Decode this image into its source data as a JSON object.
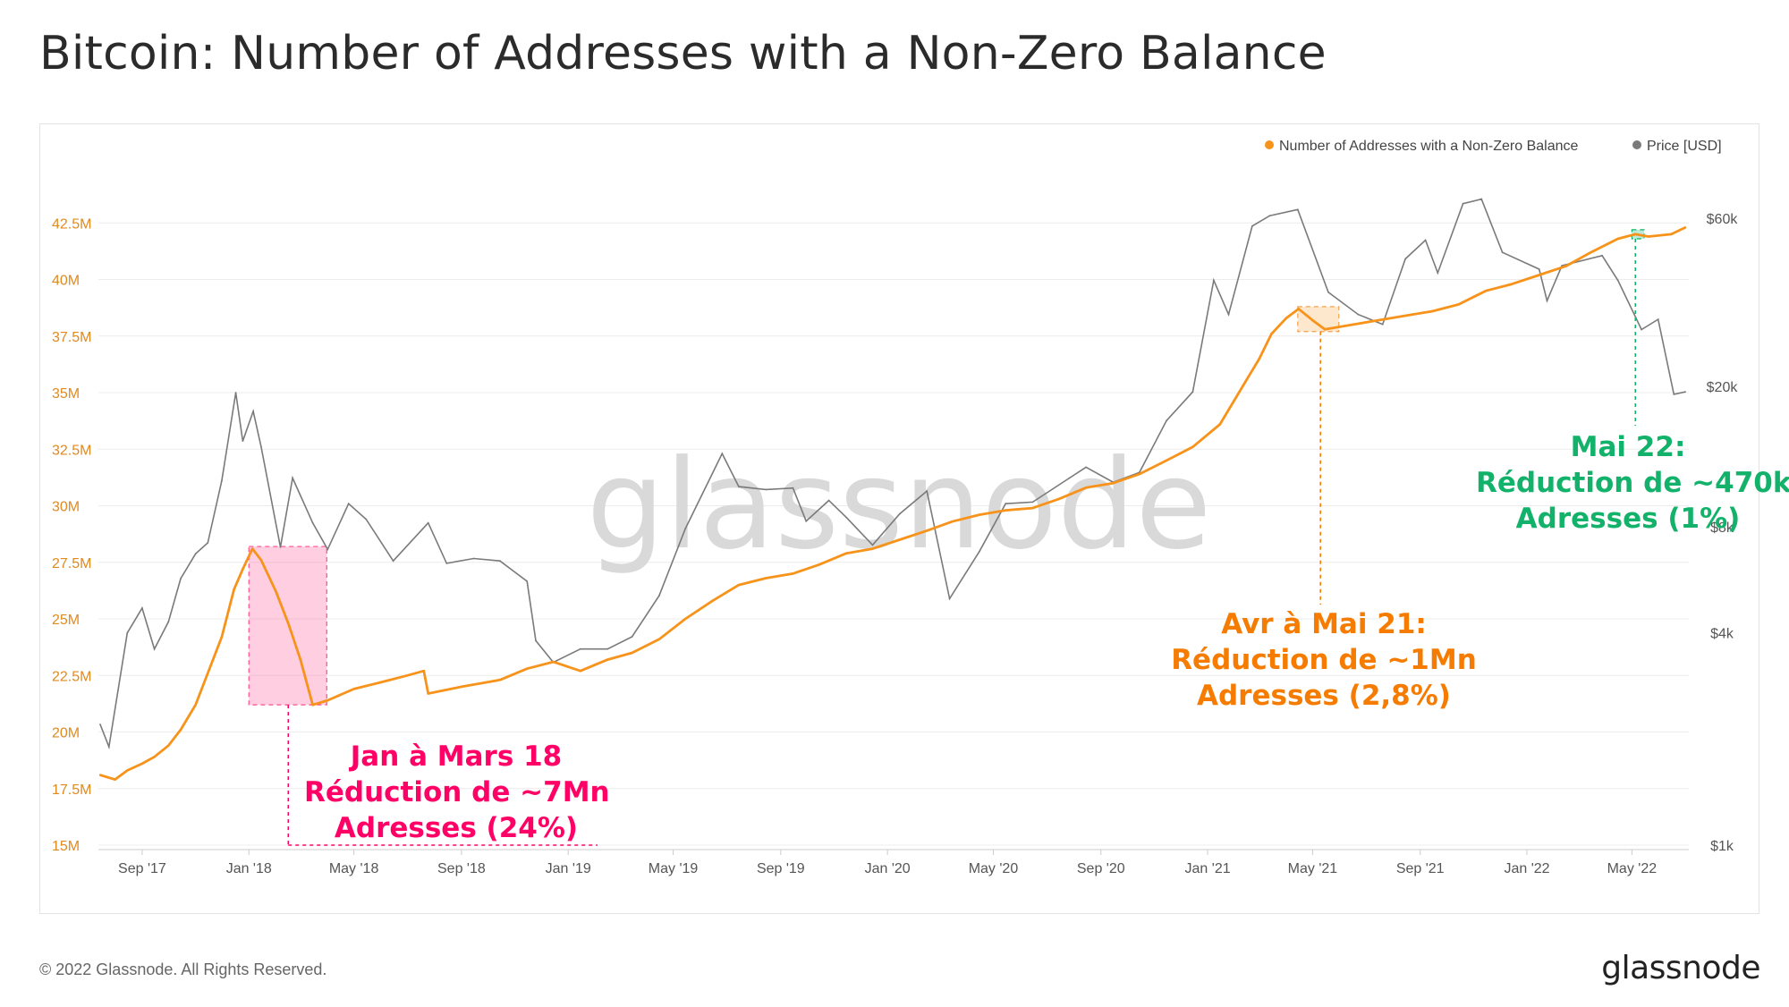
{
  "title": "Bitcoin: Number of Addresses with a Non-Zero Balance",
  "footer": {
    "copyright": "© 2022 Glassnode. All Rights Reserved.",
    "logo": "glassnode"
  },
  "watermark": "glassnode",
  "colors": {
    "addresses": "#f7931a",
    "price": "#7a7a7a",
    "pink": "#ff0066",
    "orange": "#f57c00",
    "green": "#13b26b"
  },
  "annotations": [
    {
      "id": "jan-mar-18",
      "lines": [
        "Jan à Mars 18",
        "Réduction de ~7Mn",
        "Adresses (24%)"
      ]
    },
    {
      "id": "apr-may-21",
      "lines": [
        "Avr à Mai 21:",
        "Réduction de ~1Mn",
        "Adresses (2,8%)"
      ]
    },
    {
      "id": "may-22",
      "lines": [
        "Mai 22:",
        "Réduction de ~470k",
        "Adresses (1%)"
      ]
    }
  ],
  "chart_data": {
    "type": "line",
    "title": "Bitcoin: Number of Addresses with a Non-Zero Balance",
    "legend_position": "top-right",
    "legend": [
      "Number of Addresses with a Non-Zero Balance",
      "Price [USD]"
    ],
    "x_ticks": [
      "Sep '17",
      "Jan '18",
      "May '18",
      "Sep '18",
      "Jan '19",
      "May '19",
      "Sep '19",
      "Jan '20",
      "May '20",
      "Sep '20",
      "Jan '21",
      "May '21",
      "Sep '21",
      "Jan '22",
      "May '22"
    ],
    "y_left_ticks": [
      "15M",
      "17.5M",
      "20M",
      "22.5M",
      "25M",
      "27.5M",
      "30M",
      "32.5M",
      "35M",
      "37.5M",
      "40M",
      "42.5M"
    ],
    "y_left_range": [
      15,
      43.5
    ],
    "y_right_ticks": [
      "$1k",
      "$4k",
      "$8k",
      "$20k",
      "$60k"
    ],
    "y_right_values": [
      1000,
      4000,
      8000,
      20000,
      60000
    ],
    "series": [
      {
        "name": "Number of Addresses with a Non-Zero Balance",
        "unit": "millions",
        "points": [
          [
            "2017-07-15",
            18.1
          ],
          [
            "2017-08-01",
            17.9
          ],
          [
            "2017-08-15",
            18.3
          ],
          [
            "2017-09-01",
            18.6
          ],
          [
            "2017-09-15",
            18.9
          ],
          [
            "2017-10-01",
            19.4
          ],
          [
            "2017-10-15",
            20.1
          ],
          [
            "2017-11-01",
            21.2
          ],
          [
            "2017-11-15",
            22.6
          ],
          [
            "2017-12-01",
            24.2
          ],
          [
            "2017-12-15",
            26.3
          ],
          [
            "2017-12-25",
            27.2
          ],
          [
            "2018-01-05",
            28.1
          ],
          [
            "2018-01-15",
            27.6
          ],
          [
            "2018-02-01",
            26.2
          ],
          [
            "2018-02-15",
            24.8
          ],
          [
            "2018-03-01",
            23.2
          ],
          [
            "2018-03-15",
            21.2
          ],
          [
            "2018-04-01",
            21.4
          ],
          [
            "2018-05-01",
            21.9
          ],
          [
            "2018-06-01",
            22.2
          ],
          [
            "2018-07-01",
            22.5
          ],
          [
            "2018-07-20",
            22.7
          ],
          [
            "2018-07-25",
            21.7
          ],
          [
            "2018-09-01",
            22.0
          ],
          [
            "2018-10-15",
            22.3
          ],
          [
            "2018-11-15",
            22.8
          ],
          [
            "2018-12-15",
            23.1
          ],
          [
            "2019-01-15",
            22.7
          ],
          [
            "2019-02-15",
            23.2
          ],
          [
            "2019-03-15",
            23.5
          ],
          [
            "2019-04-15",
            24.1
          ],
          [
            "2019-05-15",
            25.0
          ],
          [
            "2019-06-15",
            25.8
          ],
          [
            "2019-07-15",
            26.5
          ],
          [
            "2019-08-15",
            26.8
          ],
          [
            "2019-09-15",
            27.0
          ],
          [
            "2019-10-15",
            27.4
          ],
          [
            "2019-11-15",
            27.9
          ],
          [
            "2019-12-15",
            28.1
          ],
          [
            "2020-01-15",
            28.5
          ],
          [
            "2020-02-15",
            28.9
          ],
          [
            "2020-03-15",
            29.3
          ],
          [
            "2020-04-15",
            29.6
          ],
          [
            "2020-05-15",
            29.8
          ],
          [
            "2020-06-15",
            29.9
          ],
          [
            "2020-07-15",
            30.3
          ],
          [
            "2020-08-15",
            30.8
          ],
          [
            "2020-09-15",
            31.0
          ],
          [
            "2020-10-15",
            31.4
          ],
          [
            "2020-11-15",
            32.0
          ],
          [
            "2020-12-15",
            32.6
          ],
          [
            "2021-01-15",
            33.6
          ],
          [
            "2021-02-15",
            35.6
          ],
          [
            "2021-03-01",
            36.5
          ],
          [
            "2021-03-15",
            37.6
          ],
          [
            "2021-04-01",
            38.3
          ],
          [
            "2021-04-15",
            38.7
          ],
          [
            "2021-05-01",
            38.2
          ],
          [
            "2021-05-15",
            37.8
          ],
          [
            "2021-06-15",
            38.0
          ],
          [
            "2021-07-15",
            38.2
          ],
          [
            "2021-08-15",
            38.4
          ],
          [
            "2021-09-15",
            38.6
          ],
          [
            "2021-10-15",
            38.9
          ],
          [
            "2021-11-15",
            39.5
          ],
          [
            "2021-12-15",
            39.8
          ],
          [
            "2022-01-15",
            40.2
          ],
          [
            "2022-02-15",
            40.6
          ],
          [
            "2022-03-15",
            41.2
          ],
          [
            "2022-04-15",
            41.8
          ],
          [
            "2022-05-05",
            42.0
          ],
          [
            "2022-05-20",
            41.9
          ],
          [
            "2022-06-15",
            42.0
          ],
          [
            "2022-07-01",
            42.3
          ]
        ]
      },
      {
        "name": "Price [USD]",
        "unit": "USD",
        "points": [
          [
            "2017-07-15",
            2200
          ],
          [
            "2017-07-25",
            1900
          ],
          [
            "2017-08-15",
            4000
          ],
          [
            "2017-09-01",
            4700
          ],
          [
            "2017-09-15",
            3600
          ],
          [
            "2017-10-01",
            4300
          ],
          [
            "2017-10-15",
            5700
          ],
          [
            "2017-11-01",
            6700
          ],
          [
            "2017-11-15",
            7200
          ],
          [
            "2017-12-01",
            10800
          ],
          [
            "2017-12-17",
            19200
          ],
          [
            "2017-12-25",
            14000
          ],
          [
            "2018-01-06",
            17000
          ],
          [
            "2018-01-15",
            13500
          ],
          [
            "2018-02-06",
            7000
          ],
          [
            "2018-02-20",
            11000
          ],
          [
            "2018-03-15",
            8200
          ],
          [
            "2018-04-01",
            6900
          ],
          [
            "2018-04-25",
            9300
          ],
          [
            "2018-05-15",
            8400
          ],
          [
            "2018-06-15",
            6400
          ],
          [
            "2018-07-25",
            8200
          ],
          [
            "2018-08-15",
            6300
          ],
          [
            "2018-09-15",
            6500
          ],
          [
            "2018-10-15",
            6400
          ],
          [
            "2018-11-15",
            5600
          ],
          [
            "2018-11-25",
            3800
          ],
          [
            "2018-12-15",
            3300
          ],
          [
            "2019-01-15",
            3600
          ],
          [
            "2019-02-15",
            3600
          ],
          [
            "2019-03-15",
            3900
          ],
          [
            "2019-04-15",
            5100
          ],
          [
            "2019-05-15",
            7900
          ],
          [
            "2019-06-26",
            12900
          ],
          [
            "2019-07-15",
            10400
          ],
          [
            "2019-08-15",
            10200
          ],
          [
            "2019-09-15",
            10300
          ],
          [
            "2019-09-30",
            8300
          ],
          [
            "2019-10-26",
            9500
          ],
          [
            "2019-11-15",
            8500
          ],
          [
            "2019-12-15",
            7100
          ],
          [
            "2020-01-15",
            8700
          ],
          [
            "2020-02-15",
            10100
          ],
          [
            "2020-03-12",
            5000
          ],
          [
            "2020-04-15",
            6800
          ],
          [
            "2020-05-15",
            9300
          ],
          [
            "2020-06-15",
            9400
          ],
          [
            "2020-07-27",
            11000
          ],
          [
            "2020-08-15",
            11800
          ],
          [
            "2020-09-15",
            10700
          ],
          [
            "2020-10-15",
            11400
          ],
          [
            "2020-11-15",
            16000
          ],
          [
            "2020-12-15",
            19300
          ],
          [
            "2021-01-08",
            40000
          ],
          [
            "2021-01-25",
            32000
          ],
          [
            "2021-02-21",
            57000
          ],
          [
            "2021-03-13",
            61000
          ],
          [
            "2021-04-14",
            63500
          ],
          [
            "2021-05-19",
            37000
          ],
          [
            "2021-06-22",
            32000
          ],
          [
            "2021-07-20",
            30000
          ],
          [
            "2021-08-15",
            46000
          ],
          [
            "2021-09-07",
            52000
          ],
          [
            "2021-09-21",
            42000
          ],
          [
            "2021-10-20",
            66000
          ],
          [
            "2021-11-10",
            68000
          ],
          [
            "2021-12-04",
            48000
          ],
          [
            "2022-01-15",
            43000
          ],
          [
            "2022-01-24",
            35000
          ],
          [
            "2022-02-10",
            44000
          ],
          [
            "2022-03-28",
            47000
          ],
          [
            "2022-04-15",
            40000
          ],
          [
            "2022-05-12",
            29000
          ],
          [
            "2022-05-31",
            31000
          ],
          [
            "2022-06-18",
            19000
          ],
          [
            "2022-07-01",
            19300
          ]
        ]
      }
    ]
  }
}
